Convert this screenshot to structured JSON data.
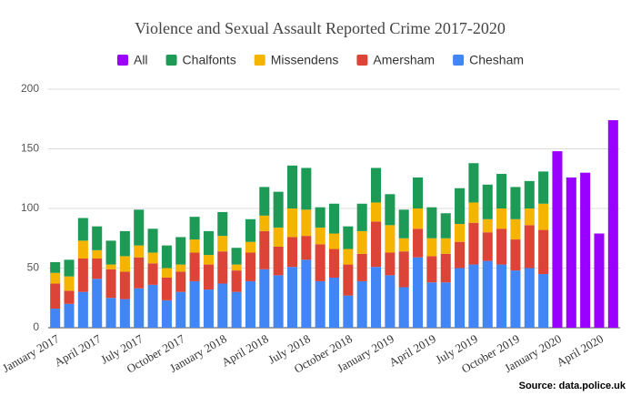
{
  "chart_data": {
    "type": "stacked-bar",
    "title": "Violence and Sexual Assault Reported Crime 2017-2020",
    "source": "Source:  data.police.uk",
    "categories": [
      "January 2017",
      null,
      null,
      "April 2017",
      null,
      null,
      "July 2017",
      null,
      null,
      "October 2017",
      null,
      null,
      "January 2018",
      null,
      null,
      "April 2018",
      null,
      null,
      "July 2018",
      null,
      null,
      "October 2018",
      null,
      null,
      "January 2019",
      null,
      null,
      "April 2019",
      null,
      null,
      "July 2019",
      null,
      null,
      "October 2019",
      null,
      null,
      "January 2020",
      null,
      null,
      "April 2020",
      null
    ],
    "series": [
      {
        "name": "All",
        "color": "#9900ff",
        "values": [
          null,
          null,
          null,
          null,
          null,
          null,
          null,
          null,
          null,
          null,
          null,
          null,
          null,
          null,
          null,
          null,
          null,
          null,
          null,
          null,
          null,
          null,
          null,
          null,
          null,
          null,
          null,
          null,
          null,
          null,
          null,
          null,
          null,
          null,
          null,
          null,
          148,
          126,
          130,
          79,
          174
        ]
      },
      {
        "name": "Chalfonts",
        "color": "#1e9a57",
        "values": [
          9,
          14,
          19,
          20,
          20,
          21,
          30,
          20,
          19,
          23,
          19,
          20,
          20,
          14,
          19,
          24,
          30,
          36,
          35,
          17,
          25,
          19,
          23,
          29,
          26,
          24,
          26,
          26,
          21,
          30,
          33,
          29,
          29,
          27,
          23,
          27,
          null,
          null,
          null,
          null,
          null
        ]
      },
      {
        "name": "Missendens",
        "color": "#f4b400",
        "values": [
          9,
          12,
          15,
          7,
          4,
          13,
          10,
          9,
          8,
          6,
          11,
          8,
          13,
          5,
          9,
          13,
          16,
          24,
          22,
          14,
          13,
          13,
          19,
          16,
          23,
          11,
          17,
          15,
          13,
          15,
          17,
          11,
          17,
          17,
          14,
          22,
          null,
          null,
          null,
          null,
          null
        ]
      },
      {
        "name": "Amersham",
        "color": "#db4437",
        "values": [
          21,
          11,
          28,
          17,
          24,
          23,
          26,
          18,
          19,
          17,
          24,
          21,
          27,
          18,
          24,
          32,
          24,
          25,
          20,
          31,
          24,
          26,
          23,
          38,
          19,
          30,
          24,
          22,
          24,
          22,
          35,
          24,
          30,
          26,
          36,
          37,
          null,
          null,
          null,
          null,
          null
        ]
      },
      {
        "name": "Chesham",
        "color": "#4285f4",
        "values": [
          16,
          20,
          30,
          41,
          25,
          24,
          33,
          36,
          23,
          30,
          39,
          32,
          37,
          30,
          39,
          49,
          44,
          51,
          57,
          39,
          42,
          27,
          39,
          51,
          44,
          34,
          59,
          38,
          38,
          50,
          53,
          56,
          53,
          48,
          50,
          45,
          null,
          null,
          null,
          null,
          null
        ]
      }
    ],
    "ylim": [
      0,
      200
    ],
    "yticks": [
      0,
      50,
      100,
      150,
      200
    ],
    "grid": true,
    "legend": "top"
  }
}
